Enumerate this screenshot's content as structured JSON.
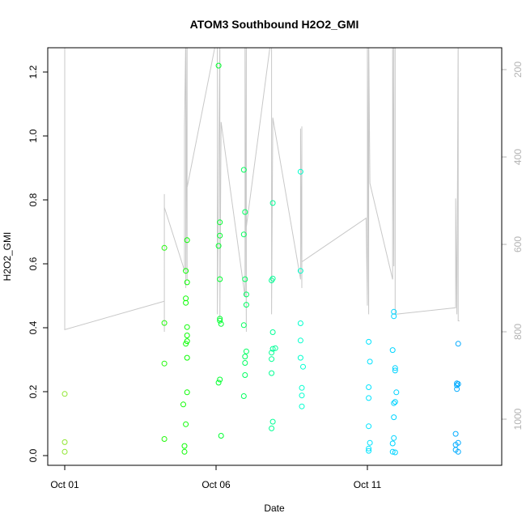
{
  "chart_data": {
    "type": "scatter",
    "title": "ATOM3 Southbound H2O2_GMI",
    "xlabel": "Date",
    "ylabel": "H2O2_GMI",
    "x_ticks": [
      "Oct 01",
      "Oct 06",
      "Oct 11"
    ],
    "y_ticks": [
      "0.0",
      "0.2",
      "0.4",
      "0.6",
      "0.8",
      "1.0",
      "1.2"
    ],
    "y2_ticks": [
      "200",
      "400",
      "600",
      "800",
      "1000"
    ],
    "xlim": [
      "2017-10-01",
      "2017-10-14"
    ],
    "ylim": [
      0,
      1.25
    ],
    "y2lim": [
      120,
      1050
    ],
    "y2_reversed": true,
    "y2_color": "#b3b3b3",
    "grid": false,
    "series": [
      {
        "kind": "points",
        "color_scale": [
          "#8ee62e",
          "#00ff00",
          "#00ffff",
          "#00aaff"
        ],
        "points": [
          {
            "x": "2017-10-01 00:00",
            "y": 0.193
          },
          {
            "x": "2017-10-01 00:00",
            "y": 0.042
          },
          {
            "x": "2017-10-01 00:00",
            "y": 0.012
          },
          {
            "x": "2017-10-04 07:00",
            "y": 0.65
          },
          {
            "x": "2017-10-04 07:00",
            "y": 0.415
          },
          {
            "x": "2017-10-04 07:00",
            "y": 0.288
          },
          {
            "x": "2017-10-04 07:00",
            "y": 0.052
          },
          {
            "x": "2017-10-04 22:00",
            "y": 0.16
          },
          {
            "x": "2017-10-04 23:00",
            "y": 0.03
          },
          {
            "x": "2017-10-04 23:00",
            "y": 0.012
          },
          {
            "x": "2017-10-05 00:00",
            "y": 0.578
          },
          {
            "x": "2017-10-05 00:00",
            "y": 0.492
          },
          {
            "x": "2017-10-05 00:00",
            "y": 0.478
          },
          {
            "x": "2017-10-05 00:00",
            "y": 0.35
          },
          {
            "x": "2017-10-05 00:00",
            "y": 0.098
          },
          {
            "x": "2017-10-05 01:00",
            "y": 0.674
          },
          {
            "x": "2017-10-05 01:00",
            "y": 0.542
          },
          {
            "x": "2017-10-05 01:00",
            "y": 0.402
          },
          {
            "x": "2017-10-05 01:00",
            "y": 0.376
          },
          {
            "x": "2017-10-05 01:00",
            "y": 0.358
          },
          {
            "x": "2017-10-05 01:00",
            "y": 0.306
          },
          {
            "x": "2017-10-05 01:00",
            "y": 0.198
          },
          {
            "x": "2017-10-06 02:00",
            "y": 1.22
          },
          {
            "x": "2017-10-06 02:00",
            "y": 0.656
          },
          {
            "x": "2017-10-06 02:00",
            "y": 0.228
          },
          {
            "x": "2017-10-06 03:00",
            "y": 0.73
          },
          {
            "x": "2017-10-06 03:00",
            "y": 0.688
          },
          {
            "x": "2017-10-06 03:00",
            "y": 0.552
          },
          {
            "x": "2017-10-06 03:00",
            "y": 0.428
          },
          {
            "x": "2017-10-06 03:00",
            "y": 0.422
          },
          {
            "x": "2017-10-06 03:00",
            "y": 0.238
          },
          {
            "x": "2017-10-06 04:00",
            "y": 0.412
          },
          {
            "x": "2017-10-06 04:00",
            "y": 0.062
          },
          {
            "x": "2017-10-06 22:00",
            "y": 0.894
          },
          {
            "x": "2017-10-06 22:00",
            "y": 0.692
          },
          {
            "x": "2017-10-06 22:00",
            "y": 0.408
          },
          {
            "x": "2017-10-06 22:00",
            "y": 0.186
          },
          {
            "x": "2017-10-06 23:00",
            "y": 0.762
          },
          {
            "x": "2017-10-06 23:00",
            "y": 0.552
          },
          {
            "x": "2017-10-06 23:00",
            "y": 0.31
          },
          {
            "x": "2017-10-06 23:00",
            "y": 0.29
          },
          {
            "x": "2017-10-06 23:00",
            "y": 0.252
          },
          {
            "x": "2017-10-07 00:00",
            "y": 0.504
          },
          {
            "x": "2017-10-07 00:00",
            "y": 0.472
          },
          {
            "x": "2017-10-07 00:00",
            "y": 0.326
          },
          {
            "x": "2017-10-07 20:00",
            "y": 0.548
          },
          {
            "x": "2017-10-07 20:00",
            "y": 0.322
          },
          {
            "x": "2017-10-07 20:00",
            "y": 0.302
          },
          {
            "x": "2017-10-07 20:00",
            "y": 0.258
          },
          {
            "x": "2017-10-07 20:00",
            "y": 0.085
          },
          {
            "x": "2017-10-07 21:00",
            "y": 0.79
          },
          {
            "x": "2017-10-07 21:00",
            "y": 0.554
          },
          {
            "x": "2017-10-07 21:00",
            "y": 0.386
          },
          {
            "x": "2017-10-07 21:00",
            "y": 0.334
          },
          {
            "x": "2017-10-07 21:00",
            "y": 0.106
          },
          {
            "x": "2017-10-07 23:00",
            "y": 0.336
          },
          {
            "x": "2017-10-08 19:00",
            "y": 0.888
          },
          {
            "x": "2017-10-08 19:00",
            "y": 0.578
          },
          {
            "x": "2017-10-08 19:00",
            "y": 0.414
          },
          {
            "x": "2017-10-08 19:00",
            "y": 0.36
          },
          {
            "x": "2017-10-08 19:00",
            "y": 0.306
          },
          {
            "x": "2017-10-08 20:00",
            "y": 0.212
          },
          {
            "x": "2017-10-08 20:00",
            "y": 0.188
          },
          {
            "x": "2017-10-08 20:00",
            "y": 0.154
          },
          {
            "x": "2017-10-08 21:00",
            "y": 0.278
          },
          {
            "x": "2017-10-11 01:00",
            "y": 0.356
          },
          {
            "x": "2017-10-11 01:00",
            "y": 0.214
          },
          {
            "x": "2017-10-11 01:00",
            "y": 0.18
          },
          {
            "x": "2017-10-11 01:00",
            "y": 0.092
          },
          {
            "x": "2017-10-11 01:00",
            "y": 0.022
          },
          {
            "x": "2017-10-11 01:00",
            "y": 0.015
          },
          {
            "x": "2017-10-11 02:00",
            "y": 0.294
          },
          {
            "x": "2017-10-11 02:00",
            "y": 0.04
          },
          {
            "x": "2017-10-11 20:00",
            "y": 0.33
          },
          {
            "x": "2017-10-11 20:00",
            "y": 0.038
          },
          {
            "x": "2017-10-11 20:00",
            "y": 0.012
          },
          {
            "x": "2017-10-11 21:00",
            "y": 0.45
          },
          {
            "x": "2017-10-11 21:00",
            "y": 0.436
          },
          {
            "x": "2017-10-11 21:00",
            "y": 0.164
          },
          {
            "x": "2017-10-11 21:00",
            "y": 0.12
          },
          {
            "x": "2017-10-11 21:00",
            "y": 0.055
          },
          {
            "x": "2017-10-11 22:00",
            "y": 0.274
          },
          {
            "x": "2017-10-11 22:00",
            "y": 0.266
          },
          {
            "x": "2017-10-11 22:00",
            "y": 0.168
          },
          {
            "x": "2017-10-11 22:00",
            "y": 0.01
          },
          {
            "x": "2017-10-11 23:00",
            "y": 0.198
          },
          {
            "x": "2017-10-13 22:00",
            "y": 0.068
          },
          {
            "x": "2017-10-13 22:00",
            "y": 0.034
          },
          {
            "x": "2017-10-13 22:00",
            "y": 0.018
          },
          {
            "x": "2017-10-13 23:00",
            "y": 0.226
          },
          {
            "x": "2017-10-13 23:00",
            "y": 0.22
          },
          {
            "x": "2017-10-13 23:00",
            "y": 0.208
          },
          {
            "x": "2017-10-14 00:00",
            "y": 0.35
          },
          {
            "x": "2017-10-14 00:00",
            "y": 0.224
          },
          {
            "x": "2017-10-14 00:00",
            "y": 0.04
          },
          {
            "x": "2017-10-14 00:00",
            "y": 0.012
          }
        ]
      },
      {
        "kind": "line",
        "axis": "y2",
        "color": "#c8c8c8",
        "points": [
          {
            "x": "2017-10-01 00:00",
            "y": 120
          },
          {
            "x": "2017-10-01 00:00",
            "y": 795
          },
          {
            "x": "2017-10-04 07:00",
            "y": 730
          },
          {
            "x": "2017-10-04 07:00",
            "y": 485
          },
          {
            "x": "2017-10-04 07:00",
            "y": 800
          },
          {
            "x": "2017-10-04 07:00",
            "y": 515
          },
          {
            "x": "2017-10-04 23:00",
            "y": 660
          },
          {
            "x": "2017-10-04 23:00",
            "y": 330
          },
          {
            "x": "2017-10-05 00:00",
            "y": 120
          },
          {
            "x": "2017-10-05 00:00",
            "y": 700
          },
          {
            "x": "2017-10-05 01:00",
            "y": 120
          },
          {
            "x": "2017-10-05 01:00",
            "y": 680
          },
          {
            "x": "2017-10-05 01:00",
            "y": 405
          },
          {
            "x": "2017-10-05 01:00",
            "y": 120
          },
          {
            "x": "2017-10-05 01:00",
            "y": 640
          },
          {
            "x": "2017-10-05 01:00",
            "y": 470
          },
          {
            "x": "2017-10-06 01:00",
            "y": 120
          },
          {
            "x": "2017-10-06 01:00",
            "y": 760
          },
          {
            "x": "2017-10-06 03:00",
            "y": 120
          },
          {
            "x": "2017-10-06 03:00",
            "y": 770
          },
          {
            "x": "2017-10-06 04:00",
            "y": 320
          },
          {
            "x": "2017-10-06 23:00",
            "y": 720
          },
          {
            "x": "2017-10-06 23:00",
            "y": 120
          },
          {
            "x": "2017-10-07 00:00",
            "y": 800
          },
          {
            "x": "2017-10-07 00:00",
            "y": 400
          },
          {
            "x": "2017-10-07 00:00",
            "y": 120
          },
          {
            "x": "2017-10-07 00:00",
            "y": 560
          },
          {
            "x": "2017-10-07 20:00",
            "y": 120
          },
          {
            "x": "2017-10-07 20:00",
            "y": 760
          },
          {
            "x": "2017-10-07 21:00",
            "y": 310
          },
          {
            "x": "2017-10-08 19:00",
            "y": 680
          },
          {
            "x": "2017-10-08 19:00",
            "y": 335
          },
          {
            "x": "2017-10-08 20:00",
            "y": 700
          },
          {
            "x": "2017-10-08 20:00",
            "y": 330
          },
          {
            "x": "2017-10-08 20:00",
            "y": 640
          },
          {
            "x": "2017-10-10 23:00",
            "y": 540
          },
          {
            "x": "2017-10-11 00:00",
            "y": 740
          },
          {
            "x": "2017-10-11 00:00",
            "y": 120
          },
          {
            "x": "2017-10-11 01:00",
            "y": 760
          },
          {
            "x": "2017-10-11 01:00",
            "y": 120
          },
          {
            "x": "2017-10-11 02:00",
            "y": 460
          },
          {
            "x": "2017-10-11 20:00",
            "y": 680
          },
          {
            "x": "2017-10-11 20:00",
            "y": 120
          },
          {
            "x": "2017-10-11 21:00",
            "y": 650
          },
          {
            "x": "2017-10-11 21:00",
            "y": 120
          },
          {
            "x": "2017-10-11 22:00",
            "y": 120
          },
          {
            "x": "2017-10-11 22:00",
            "y": 760
          },
          {
            "x": "2017-10-13 22:00",
            "y": 745
          },
          {
            "x": "2017-10-13 22:00",
            "y": 495
          },
          {
            "x": "2017-10-13 23:00",
            "y": 760
          },
          {
            "x": "2017-10-14 00:00",
            "y": 120
          },
          {
            "x": "2017-10-14 00:00",
            "y": 775
          },
          {
            "x": "2017-10-14 01:00",
            "y": 775
          }
        ]
      }
    ]
  }
}
